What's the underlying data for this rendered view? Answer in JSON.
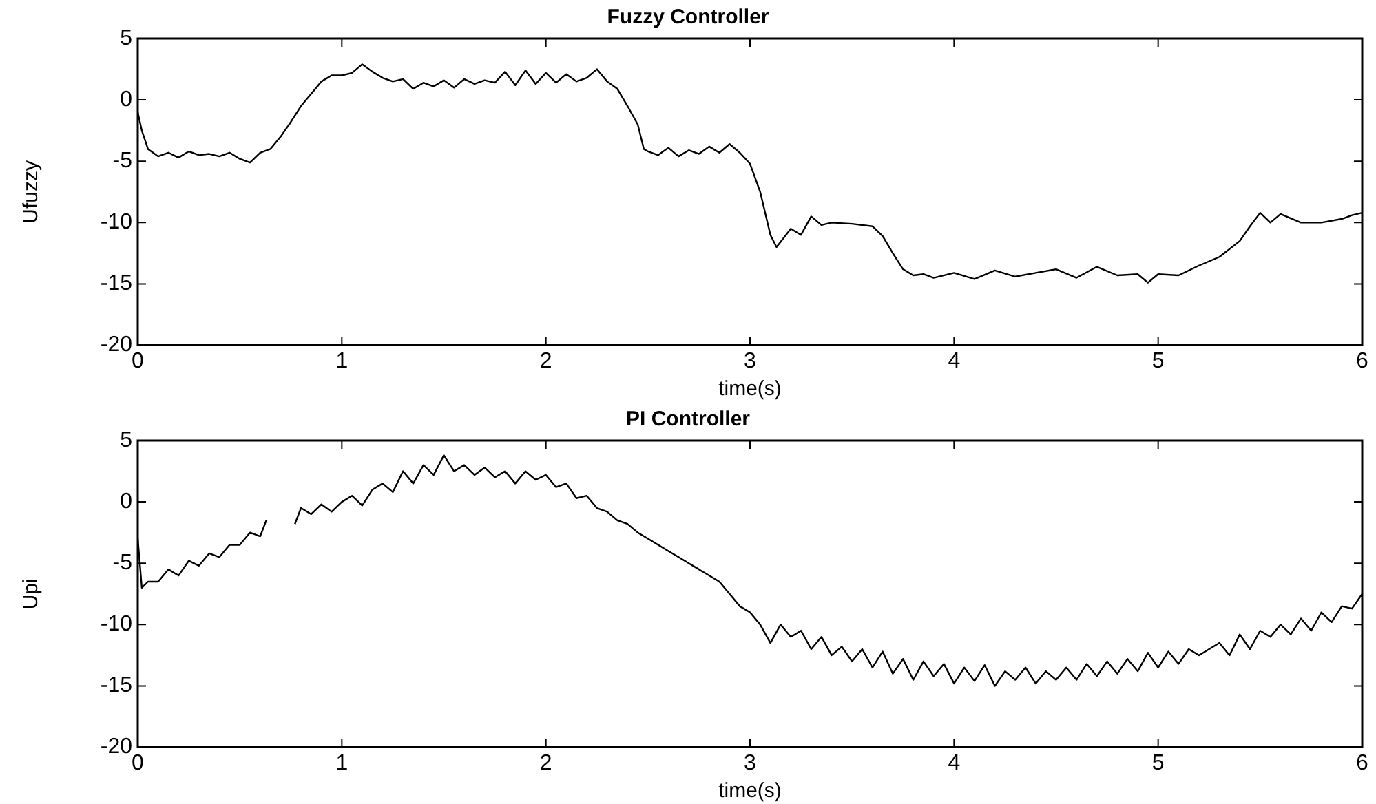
{
  "chart_data": [
    {
      "type": "line",
      "title": "Fuzzy Controller",
      "xlabel": "time(s)",
      "ylabel": "Ufuzzy",
      "xlim": [
        0,
        6
      ],
      "ylim": [
        -20,
        5
      ],
      "xticks": [
        0,
        1,
        2,
        3,
        4,
        5,
        6
      ],
      "yticks": [
        -20,
        -15,
        -10,
        -5,
        0,
        5
      ],
      "grid": false,
      "legend": false,
      "series": [
        {
          "color": "#000000",
          "x": [
            0,
            0.02,
            0.05,
            0.1,
            0.15,
            0.2,
            0.25,
            0.3,
            0.35,
            0.4,
            0.45,
            0.5,
            0.55,
            0.6,
            0.65,
            0.7,
            0.75,
            0.8,
            0.85,
            0.9,
            0.95,
            1.0,
            1.05,
            1.1,
            1.15,
            1.2,
            1.25,
            1.3,
            1.35,
            1.4,
            1.45,
            1.5,
            1.55,
            1.6,
            1.65,
            1.7,
            1.75,
            1.8,
            1.85,
            1.9,
            1.95,
            2.0,
            2.05,
            2.1,
            2.15,
            2.2,
            2.25,
            2.3,
            2.35,
            2.4,
            2.45,
            2.48,
            2.5,
            2.55,
            2.6,
            2.65,
            2.7,
            2.75,
            2.8,
            2.85,
            2.9,
            2.95,
            3.0,
            3.05,
            3.1,
            3.13,
            3.2,
            3.25,
            3.3,
            3.35,
            3.4,
            3.5,
            3.6,
            3.65,
            3.7,
            3.75,
            3.8,
            3.85,
            3.9,
            4.0,
            4.1,
            4.2,
            4.3,
            4.4,
            4.5,
            4.6,
            4.7,
            4.8,
            4.9,
            4.95,
            5.0,
            5.1,
            5.2,
            5.3,
            5.4,
            5.45,
            5.5,
            5.55,
            5.6,
            5.7,
            5.8,
            5.9,
            5.95,
            6
          ],
          "values": [
            -1,
            -2.5,
            -4,
            -4.6,
            -4.3,
            -4.7,
            -4.2,
            -4.5,
            -4.4,
            -4.6,
            -4.3,
            -4.8,
            -5.1,
            -4.3,
            -4,
            -3,
            -1.8,
            -0.5,
            0.5,
            1.5,
            2,
            2,
            2.2,
            2.9,
            2.3,
            1.8,
            1.5,
            1.7,
            0.9,
            1.4,
            1.1,
            1.6,
            1,
            1.7,
            1.3,
            1.6,
            1.4,
            2.3,
            1.2,
            2.4,
            1.3,
            2.2,
            1.4,
            2.1,
            1.5,
            1.8,
            2.5,
            1.5,
            0.9,
            -0.5,
            -2,
            -4,
            -4.2,
            -4.5,
            -3.9,
            -4.6,
            -4.1,
            -4.4,
            -3.8,
            -4.3,
            -3.6,
            -4.3,
            -5.2,
            -7.5,
            -11,
            -12,
            -10.5,
            -11,
            -9.5,
            -10.2,
            -10,
            -10.1,
            -10.3,
            -11.1,
            -12.5,
            -13.8,
            -14.3,
            -14.2,
            -14.5,
            -14.1,
            -14.6,
            -13.9,
            -14.4,
            -14.1,
            -13.8,
            -14.5,
            -13.6,
            -14.3,
            -14.2,
            -14.9,
            -14.2,
            -14.3,
            -13.5,
            -12.8,
            -11.5,
            -10.3,
            -9.2,
            -10,
            -9.3,
            -10,
            -10,
            -9.7,
            -9.4,
            -9.2
          ]
        }
      ]
    },
    {
      "type": "line",
      "title": "PI Controller",
      "xlabel": "time(s)",
      "ylabel": "Upi",
      "xlim": [
        0,
        6
      ],
      "ylim": [
        -20,
        5
      ],
      "xticks": [
        0,
        1,
        2,
        3,
        4,
        5,
        6
      ],
      "yticks": [
        -20,
        -15,
        -10,
        -5,
        0,
        5
      ],
      "grid": false,
      "legend": false,
      "series": [
        {
          "color": "#000000",
          "x": [
            0,
            0.02,
            0.05,
            0.1,
            0.15,
            0.2,
            0.25,
            0.3,
            0.35,
            0.4,
            0.45,
            0.5,
            0.55,
            0.6,
            0.63,
            0.7,
            0.77,
            0.8,
            0.85,
            0.9,
            0.95,
            1.0,
            1.05,
            1.1,
            1.15,
            1.2,
            1.25,
            1.3,
            1.35,
            1.4,
            1.45,
            1.5,
            1.55,
            1.6,
            1.65,
            1.7,
            1.75,
            1.8,
            1.85,
            1.9,
            1.95,
            2.0,
            2.05,
            2.1,
            2.15,
            2.2,
            2.25,
            2.3,
            2.35,
            2.4,
            2.45,
            2.5,
            2.55,
            2.6,
            2.65,
            2.7,
            2.75,
            2.8,
            2.85,
            2.9,
            2.95,
            3.0,
            3.05,
            3.1,
            3.15,
            3.2,
            3.25,
            3.3,
            3.35,
            3.4,
            3.45,
            3.5,
            3.55,
            3.6,
            3.65,
            3.7,
            3.75,
            3.8,
            3.85,
            3.9,
            3.95,
            4.0,
            4.05,
            4.1,
            4.15,
            4.2,
            4.25,
            4.3,
            4.35,
            4.4,
            4.45,
            4.5,
            4.55,
            4.6,
            4.65,
            4.7,
            4.75,
            4.8,
            4.85,
            4.9,
            4.95,
            5.0,
            5.05,
            5.1,
            5.15,
            5.2,
            5.3,
            5.35,
            5.4,
            5.45,
            5.5,
            5.55,
            5.6,
            5.65,
            5.7,
            5.75,
            5.8,
            5.85,
            5.9,
            5.95,
            6
          ],
          "values": [
            -3,
            -7,
            -6.5,
            -6.5,
            -5.5,
            -6,
            -4.8,
            -5.2,
            -4.2,
            -4.5,
            -3.5,
            -3.5,
            -2.5,
            -2.8,
            -1.5,
            null,
            -1.8,
            -0.5,
            -1,
            -0.2,
            -0.8,
            0,
            0.5,
            -0.3,
            1,
            1.5,
            0.8,
            2.5,
            1.5,
            3,
            2.2,
            3.8,
            2.5,
            3,
            2.2,
            2.8,
            2,
            2.5,
            1.5,
            2.5,
            1.8,
            2.2,
            1.2,
            1.5,
            0.3,
            0.5,
            -0.5,
            -0.8,
            -1.5,
            -1.8,
            -2.5,
            -3,
            -3.5,
            -4,
            -4.5,
            -5,
            -5.5,
            -6,
            -6.5,
            -7.5,
            -8.5,
            -9,
            -10,
            -11.5,
            -10,
            -11,
            -10.5,
            -12,
            -11,
            -12.5,
            -11.8,
            -13,
            -12,
            -13.5,
            -12.2,
            -14,
            -12.8,
            -14.5,
            -13,
            -14.2,
            -13.2,
            -14.8,
            -13.5,
            -14.6,
            -13.3,
            -15,
            -13.8,
            -14.5,
            -13.5,
            -14.8,
            -13.8,
            -14.5,
            -13.5,
            -14.5,
            -13.2,
            -14.2,
            -13,
            -14,
            -12.8,
            -13.8,
            -12.3,
            -13.5,
            -12.2,
            -13.2,
            -12,
            -12.5,
            -11.5,
            -12.5,
            -10.8,
            -12,
            -10.5,
            -11,
            -10,
            -10.8,
            -9.5,
            -10.5,
            -9,
            -9.8,
            -8.5,
            -8.7,
            -7.5
          ]
        }
      ]
    }
  ]
}
